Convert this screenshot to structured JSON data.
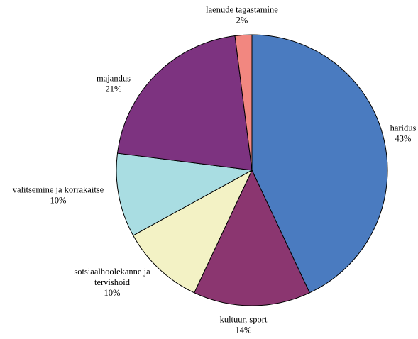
{
  "chart_data": {
    "type": "pie",
    "title": "",
    "slices": [
      {
        "name": "haridus",
        "value": 43,
        "label_lines": [
          "haridus",
          "43%"
        ],
        "color": "#4A7BC0"
      },
      {
        "name": "kultuur, sport",
        "value": 14,
        "label_lines": [
          "kultuur, sport",
          "14%"
        ],
        "color": "#8B3670"
      },
      {
        "name": "sotsiaalhoolekanne ja tervishoid",
        "value": 10,
        "label_lines": [
          "sotsiaalhoolekanne ja",
          "tervishoid",
          "10%"
        ],
        "color": "#F3F2C5"
      },
      {
        "name": "valitsemine ja korrakaitse",
        "value": 10,
        "label_lines": [
          "valitsemine ja korrakaitse",
          "10%"
        ],
        "color": "#A9DDE2"
      },
      {
        "name": "majandus",
        "value": 21,
        "label_lines": [
          "majandus",
          "21%"
        ],
        "color": "#7D3380"
      },
      {
        "name": "laenude tagastamine",
        "value": 2,
        "label_lines": [
          "laenude tagastamine",
          "2%"
        ],
        "color": "#F28780"
      }
    ],
    "start": "12 o'clock",
    "direction": "clockwise",
    "legend": "none"
  }
}
